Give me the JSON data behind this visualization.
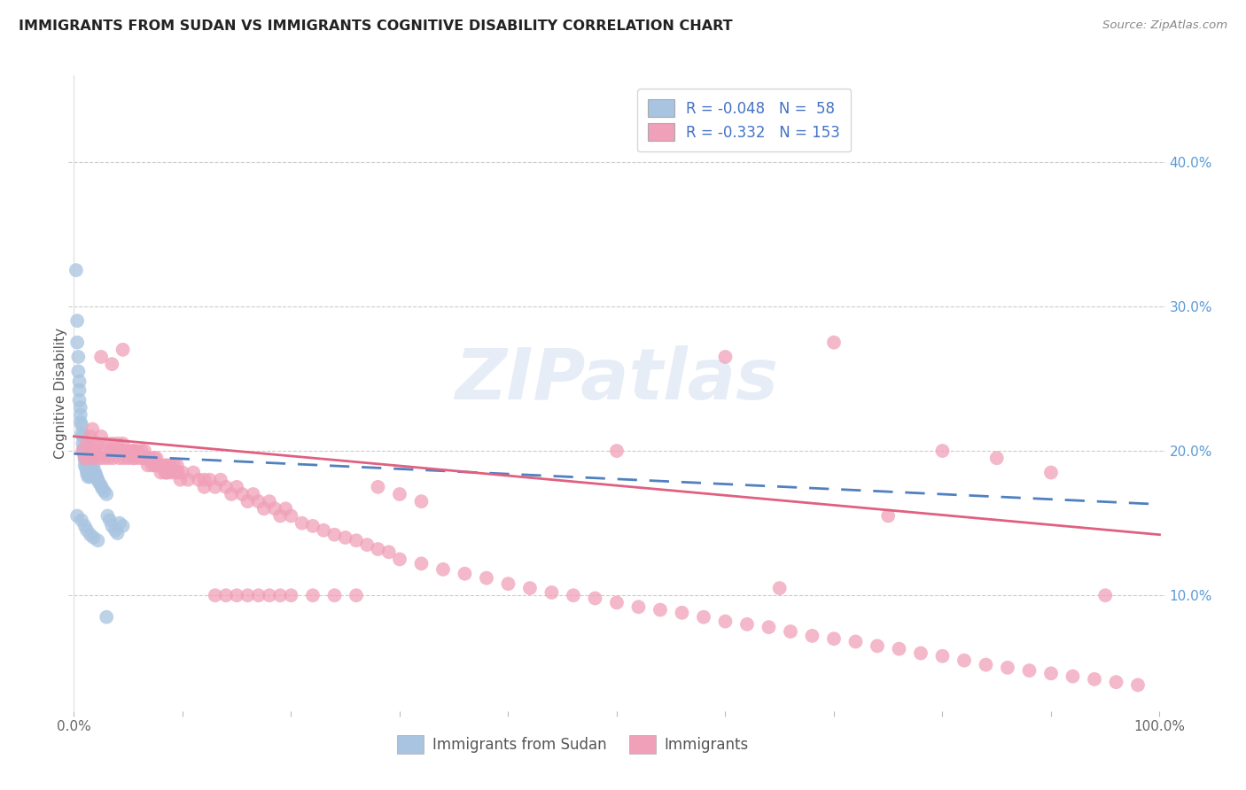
{
  "title": "IMMIGRANTS FROM SUDAN VS IMMIGRANTS COGNITIVE DISABILITY CORRELATION CHART",
  "source": "Source: ZipAtlas.com",
  "ylabel": "Cognitive Disability",
  "right_yticks": [
    "10.0%",
    "20.0%",
    "30.0%",
    "40.0%"
  ],
  "right_ytick_vals": [
    0.1,
    0.2,
    0.3,
    0.4
  ],
  "blue_scatter_color": "#a8c4e0",
  "pink_scatter_color": "#f0a0b8",
  "blue_line_color": "#5080c0",
  "pink_line_color": "#e06080",
  "watermark_text": "ZIPatlas",
  "xlim": [
    -0.005,
    1.005
  ],
  "ylim": [
    0.02,
    0.46
  ],
  "legend1_label1": "R = -0.048   N =  58",
  "legend1_label2": "R = -0.332   N = 153",
  "legend1_color1": "#a8c4e0",
  "legend1_color2": "#f0a0b8",
  "legend2_label1": "Immigrants from Sudan",
  "legend2_label2": "Immigrants",
  "blue_intercept": 0.198,
  "blue_slope": -0.035,
  "pink_intercept": 0.21,
  "pink_slope": -0.068,
  "blue_x": [
    0.002,
    0.003,
    0.003,
    0.004,
    0.004,
    0.005,
    0.005,
    0.005,
    0.006,
    0.006,
    0.006,
    0.007,
    0.007,
    0.008,
    0.008,
    0.009,
    0.009,
    0.01,
    0.01,
    0.01,
    0.011,
    0.011,
    0.012,
    0.012,
    0.013,
    0.013,
    0.014,
    0.015,
    0.015,
    0.016,
    0.016,
    0.017,
    0.018,
    0.018,
    0.019,
    0.02,
    0.021,
    0.022,
    0.023,
    0.025,
    0.026,
    0.028,
    0.03,
    0.031,
    0.033,
    0.035,
    0.038,
    0.04,
    0.042,
    0.045,
    0.003,
    0.007,
    0.01,
    0.012,
    0.015,
    0.018,
    0.022,
    0.03
  ],
  "blue_y": [
    0.325,
    0.29,
    0.275,
    0.265,
    0.255,
    0.248,
    0.242,
    0.235,
    0.23,
    0.225,
    0.22,
    0.218,
    0.212,
    0.21,
    0.205,
    0.202,
    0.198,
    0.196,
    0.194,
    0.19,
    0.192,
    0.188,
    0.186,
    0.184,
    0.182,
    0.188,
    0.185,
    0.182,
    0.195,
    0.192,
    0.188,
    0.185,
    0.183,
    0.19,
    0.186,
    0.184,
    0.182,
    0.18,
    0.178,
    0.176,
    0.174,
    0.172,
    0.17,
    0.155,
    0.152,
    0.148,
    0.145,
    0.143,
    0.15,
    0.148,
    0.155,
    0.152,
    0.148,
    0.145,
    0.142,
    0.14,
    0.138,
    0.085
  ],
  "pink_x": [
    0.008,
    0.01,
    0.012,
    0.014,
    0.015,
    0.016,
    0.017,
    0.018,
    0.019,
    0.02,
    0.022,
    0.024,
    0.025,
    0.026,
    0.028,
    0.03,
    0.032,
    0.034,
    0.035,
    0.036,
    0.038,
    0.04,
    0.042,
    0.044,
    0.045,
    0.046,
    0.048,
    0.05,
    0.052,
    0.054,
    0.055,
    0.056,
    0.058,
    0.06,
    0.062,
    0.064,
    0.065,
    0.066,
    0.068,
    0.07,
    0.072,
    0.074,
    0.075,
    0.076,
    0.078,
    0.08,
    0.082,
    0.084,
    0.085,
    0.086,
    0.088,
    0.09,
    0.092,
    0.094,
    0.095,
    0.096,
    0.098,
    0.1,
    0.105,
    0.11,
    0.115,
    0.12,
    0.125,
    0.13,
    0.135,
    0.14,
    0.145,
    0.15,
    0.155,
    0.16,
    0.165,
    0.17,
    0.175,
    0.18,
    0.185,
    0.19,
    0.195,
    0.2,
    0.21,
    0.22,
    0.23,
    0.24,
    0.25,
    0.26,
    0.27,
    0.28,
    0.29,
    0.3,
    0.32,
    0.34,
    0.36,
    0.38,
    0.4,
    0.42,
    0.44,
    0.46,
    0.48,
    0.5,
    0.52,
    0.54,
    0.56,
    0.58,
    0.6,
    0.62,
    0.64,
    0.66,
    0.68,
    0.7,
    0.72,
    0.74,
    0.76,
    0.78,
    0.8,
    0.82,
    0.84,
    0.86,
    0.88,
    0.9,
    0.92,
    0.94,
    0.96,
    0.98,
    0.025,
    0.035,
    0.045,
    0.055,
    0.065,
    0.075,
    0.085,
    0.5,
    0.6,
    0.65,
    0.7,
    0.75,
    0.8,
    0.85,
    0.9,
    0.95,
    0.12,
    0.13,
    0.14,
    0.15,
    0.16,
    0.17,
    0.18,
    0.19,
    0.2,
    0.22,
    0.24,
    0.26,
    0.28,
    0.3,
    0.32
  ],
  "pink_y": [
    0.2,
    0.195,
    0.205,
    0.195,
    0.21,
    0.2,
    0.215,
    0.205,
    0.195,
    0.2,
    0.205,
    0.195,
    0.21,
    0.2,
    0.195,
    0.205,
    0.195,
    0.2,
    0.205,
    0.195,
    0.2,
    0.205,
    0.195,
    0.2,
    0.205,
    0.195,
    0.2,
    0.195,
    0.2,
    0.195,
    0.2,
    0.195,
    0.2,
    0.195,
    0.2,
    0.195,
    0.2,
    0.195,
    0.19,
    0.195,
    0.19,
    0.195,
    0.19,
    0.195,
    0.19,
    0.185,
    0.19,
    0.185,
    0.19,
    0.185,
    0.19,
    0.185,
    0.19,
    0.185,
    0.19,
    0.185,
    0.18,
    0.185,
    0.18,
    0.185,
    0.18,
    0.175,
    0.18,
    0.175,
    0.18,
    0.175,
    0.17,
    0.175,
    0.17,
    0.165,
    0.17,
    0.165,
    0.16,
    0.165,
    0.16,
    0.155,
    0.16,
    0.155,
    0.15,
    0.148,
    0.145,
    0.142,
    0.14,
    0.138,
    0.135,
    0.132,
    0.13,
    0.125,
    0.122,
    0.118,
    0.115,
    0.112,
    0.108,
    0.105,
    0.102,
    0.1,
    0.098,
    0.095,
    0.092,
    0.09,
    0.088,
    0.085,
    0.082,
    0.08,
    0.078,
    0.075,
    0.072,
    0.07,
    0.068,
    0.065,
    0.063,
    0.06,
    0.058,
    0.055,
    0.052,
    0.05,
    0.048,
    0.046,
    0.044,
    0.042,
    0.04,
    0.038,
    0.265,
    0.26,
    0.27,
    0.2,
    0.195,
    0.19,
    0.185,
    0.2,
    0.265,
    0.105,
    0.275,
    0.155,
    0.2,
    0.195,
    0.185,
    0.1,
    0.18,
    0.1,
    0.1,
    0.1,
    0.1,
    0.1,
    0.1,
    0.1,
    0.1,
    0.1,
    0.1,
    0.1,
    0.175,
    0.17,
    0.165
  ]
}
